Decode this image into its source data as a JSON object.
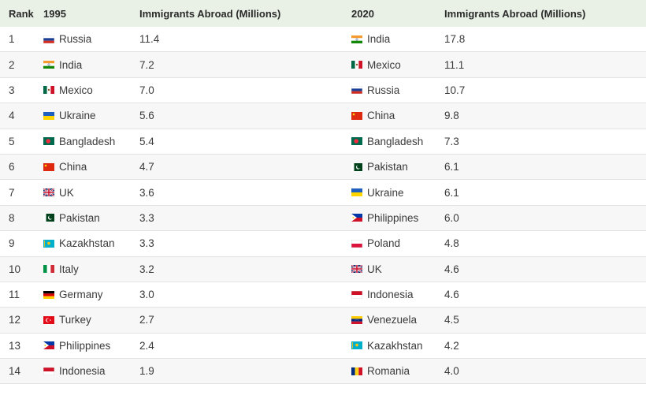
{
  "header": {
    "rank": "Rank",
    "year1": "1995",
    "value1": "Immigrants Abroad (Millions)",
    "year2": "2020",
    "value2": "Immigrants Abroad (Millions)"
  },
  "rows": [
    {
      "rank": "1",
      "c1": "Russia",
      "f1": "russia",
      "v1": "11.4",
      "c2": "India",
      "f2": "india",
      "v2": "17.8"
    },
    {
      "rank": "2",
      "c1": "India",
      "f1": "india",
      "v1": "7.2",
      "c2": "Mexico",
      "f2": "mexico",
      "v2": "11.1"
    },
    {
      "rank": "3",
      "c1": "Mexico",
      "f1": "mexico",
      "v1": "7.0",
      "c2": "Russia",
      "f2": "russia",
      "v2": "10.7"
    },
    {
      "rank": "4",
      "c1": "Ukraine",
      "f1": "ukraine",
      "v1": "5.6",
      "c2": "China",
      "f2": "china",
      "v2": "9.8"
    },
    {
      "rank": "5",
      "c1": "Bangladesh",
      "f1": "bangladesh",
      "v1": "5.4",
      "c2": "Bangladesh",
      "f2": "bangladesh",
      "v2": "7.3"
    },
    {
      "rank": "6",
      "c1": "China",
      "f1": "china",
      "v1": "4.7",
      "c2": "Pakistan",
      "f2": "pakistan",
      "v2": "6.1"
    },
    {
      "rank": "7",
      "c1": "UK",
      "f1": "uk",
      "v1": "3.6",
      "c2": "Ukraine",
      "f2": "ukraine",
      "v2": "6.1"
    },
    {
      "rank": "8",
      "c1": "Pakistan",
      "f1": "pakistan",
      "v1": "3.3",
      "c2": "Philippines",
      "f2": "philippines",
      "v2": "6.0"
    },
    {
      "rank": "9",
      "c1": "Kazakhstan",
      "f1": "kazakhstan",
      "v1": "3.3",
      "c2": "Poland",
      "f2": "poland",
      "v2": "4.8"
    },
    {
      "rank": "10",
      "c1": "Italy",
      "f1": "italy",
      "v1": "3.2",
      "c2": "UK",
      "f2": "uk",
      "v2": "4.6"
    },
    {
      "rank": "11",
      "c1": "Germany",
      "f1": "germany",
      "v1": "3.0",
      "c2": "Indonesia",
      "f2": "indonesia",
      "v2": "4.6"
    },
    {
      "rank": "12",
      "c1": "Turkey",
      "f1": "turkey",
      "v1": "2.7",
      "c2": "Venezuela",
      "f2": "venezuela",
      "v2": "4.5"
    },
    {
      "rank": "13",
      "c1": "Philippines",
      "f1": "philippines",
      "v1": "2.4",
      "c2": "Kazakhstan",
      "f2": "kazakhstan",
      "v2": "4.2"
    },
    {
      "rank": "14",
      "c1": "Indonesia",
      "f1": "indonesia",
      "v1": "1.9",
      "c2": "Romania",
      "f2": "romania",
      "v2": "4.0"
    }
  ],
  "colors": {
    "header_bg": "#e9f0e6",
    "alt_row_bg": "#f7f7f7",
    "border": "#e3e3e3"
  }
}
